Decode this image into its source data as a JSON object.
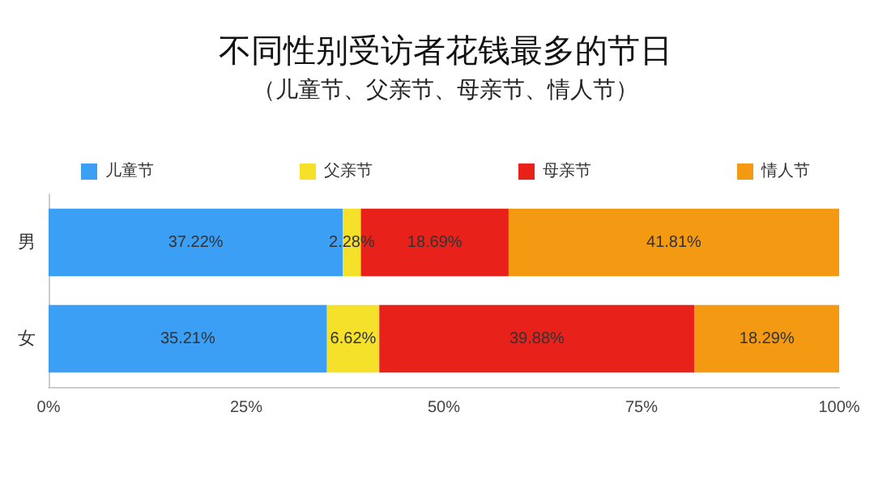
{
  "chart_data": {
    "type": "bar",
    "title": "不同性别受访者花钱最多的节日",
    "subtitle": "（儿童节、父亲节、母亲节、情人节）",
    "orientation": "horizontal",
    "stacked": true,
    "categories": [
      "男",
      "女"
    ],
    "series": [
      {
        "name": "儿童节",
        "color": "#3a9ff5",
        "values": [
          37.22,
          35.21
        ],
        "value_labels": [
          "37.22%",
          "35.21%"
        ]
      },
      {
        "name": "父亲节",
        "color": "#f5e02a",
        "values": [
          2.28,
          6.62
        ],
        "value_labels": [
          "2.28%",
          "6.62%"
        ]
      },
      {
        "name": "母亲节",
        "color": "#e8221a",
        "values": [
          18.69,
          39.88
        ],
        "value_labels": [
          "18.69%",
          "39.88%"
        ]
      },
      {
        "name": "情人节",
        "color": "#f39a12",
        "values": [
          41.81,
          18.29
        ],
        "value_labels": [
          "41.81%",
          "18.29%"
        ]
      }
    ],
    "xlim": [
      0,
      100
    ],
    "xticks": [
      {
        "value": 0,
        "label": "0%"
      },
      {
        "value": 25,
        "label": "25%"
      },
      {
        "value": 50,
        "label": "50%"
      },
      {
        "value": 75,
        "label": "75%"
      },
      {
        "value": 100,
        "label": "100%"
      }
    ],
    "grid": false,
    "legend": "top"
  }
}
